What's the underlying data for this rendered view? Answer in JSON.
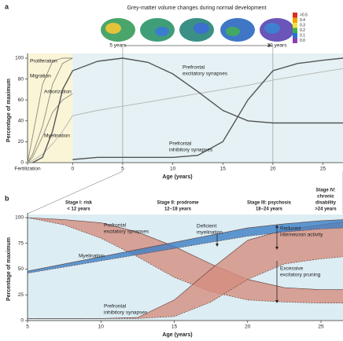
{
  "chart_data": [
    {
      "type": "line",
      "panel": "a",
      "title": "Grey-matter volume changes during normal development",
      "brain_start_label": "5 years",
      "brain_end_label": "20 years",
      "colorbar_ticks": [
        {
          "value": 0.5,
          "label": ">0.5"
        },
        0.4,
        0.3,
        0.2,
        0.1,
        {
          "value": 0,
          "label": "0.0"
        }
      ],
      "colorbar_colors": [
        "#d7301f",
        "#f4a300",
        "#e8e83a",
        "#3cb04a",
        "#2b6fd6",
        "#8e3fb5"
      ],
      "x_label": "Age (years)",
      "y_label": "Percentage of maximum",
      "x": [
        -4.5,
        -4,
        -3,
        -2,
        -1,
        0,
        2.5,
        5,
        7.5,
        10,
        12.5,
        15,
        17.5,
        20,
        22.5,
        25,
        27
      ],
      "xlim": [
        -4.5,
        27
      ],
      "xticks": [
        {
          "value": -4.5,
          "label": "Fertilization"
        },
        0,
        5,
        10,
        15,
        20,
        25
      ],
      "ylim": [
        0,
        100
      ],
      "yticks": [
        0,
        20,
        40,
        60,
        80,
        100
      ],
      "shaded_regions": [
        {
          "from": -4.5,
          "to": 0,
          "color": "#faf5d7"
        },
        {
          "from": 0,
          "to": 27,
          "color": "#e5f1f4"
        }
      ],
      "vlines": [
        5,
        20
      ],
      "series": [
        {
          "label_lines": [
            "Proliferation"
          ],
          "color": "#8a8a80",
          "values": [
            0,
            25,
            75,
            97,
            100,
            100,
            null,
            null,
            null,
            null,
            null,
            null,
            null,
            null,
            null,
            null,
            null
          ]
        },
        {
          "label_lines": [
            "Migration"
          ],
          "color": "#8a8a80",
          "values": [
            0,
            8,
            35,
            75,
            95,
            100,
            null,
            null,
            null,
            null,
            null,
            null,
            null,
            null,
            null,
            null,
            null
          ]
        },
        {
          "label_lines": [
            "Arborization"
          ],
          "color": "#8a8a80",
          "values": [
            0,
            5,
            25,
            48,
            60,
            66,
            null,
            null,
            null,
            null,
            null,
            null,
            null,
            null,
            null,
            null,
            null
          ]
        },
        {
          "label_lines": [
            "Myelination"
          ],
          "color": "#b5b5b0",
          "values": [
            0,
            2,
            8,
            18,
            30,
            45,
            50,
            54,
            58,
            62,
            66,
            70,
            74,
            79,
            83,
            87,
            90
          ]
        },
        {
          "label_lines": [
            "Prefrontal",
            "excitatory synapses"
          ],
          "color": "#555555",
          "values": [
            null,
            0,
            5,
            30,
            70,
            88,
            97,
            100,
            96,
            85,
            68,
            50,
            40,
            38,
            38,
            38,
            38
          ]
        },
        {
          "label_lines": [
            "Prefrontal",
            "inhibitory synapses"
          ],
          "color": "#555555",
          "values": [
            null,
            null,
            null,
            null,
            null,
            3,
            5,
            5,
            5,
            5,
            7,
            20,
            60,
            88,
            95,
            98,
            100
          ]
        }
      ]
    },
    {
      "type": "band",
      "panel": "b",
      "x_label": "Age (years)",
      "y_label": "Percentage of maximum",
      "x": [
        5,
        7.5,
        10,
        12.5,
        15,
        17.5,
        20,
        22.5,
        25,
        26.5
      ],
      "xlim": [
        5,
        26.5
      ],
      "xticks": [
        5,
        10,
        15,
        20,
        25
      ],
      "ylim": [
        0,
        100
      ],
      "yticks": [
        0,
        25,
        50,
        75,
        100
      ],
      "background": "#dcedf3",
      "stages": [
        {
          "lines": [
            "Stage I: risk",
            "< 12 years"
          ]
        },
        {
          "lines": [
            "Stage II: prodrome",
            "12–18 years"
          ]
        },
        {
          "lines": [
            "Stage III: psychosis",
            "18–24 years"
          ]
        },
        {
          "lines": [
            "Stage IV:",
            "chronic",
            "disability",
            ">24 years"
          ]
        }
      ],
      "annotations": [
        {
          "lines": [
            "Deficient",
            "myelination"
          ]
        },
        {
          "lines": [
            "Reduced",
            "interneuron activity"
          ]
        },
        {
          "lines": [
            "Excessive",
            "excitatory pruning"
          ]
        }
      ],
      "series": [
        {
          "label_lines": [
            "Prefrontal",
            "excitatory synapses"
          ],
          "color": "#d58d7e",
          "values": [
            100,
            98,
            95,
            86,
            72,
            55,
            40,
            32,
            30,
            30
          ],
          "lower": [
            100,
            93,
            80,
            62,
            42,
            28,
            20,
            18,
            17,
            17
          ]
        },
        {
          "label_lines": [
            "Prefrontal",
            "inhibitory synapses"
          ],
          "color": "#d58d7e",
          "values": [
            2,
            2,
            2,
            3,
            20,
            50,
            78,
            88,
            93,
            96
          ],
          "lower": [
            2,
            2,
            2,
            2,
            4,
            18,
            40,
            55,
            60,
            62
          ]
        },
        {
          "label_lines": [
            "Myelination"
          ],
          "color": "#3d7fc4",
          "values": [
            48,
            55,
            62,
            69,
            76,
            83,
            90,
            94,
            97,
            98
          ],
          "lower": [
            46,
            52,
            58,
            64,
            70,
            76,
            82,
            86,
            89,
            90
          ]
        }
      ]
    }
  ]
}
